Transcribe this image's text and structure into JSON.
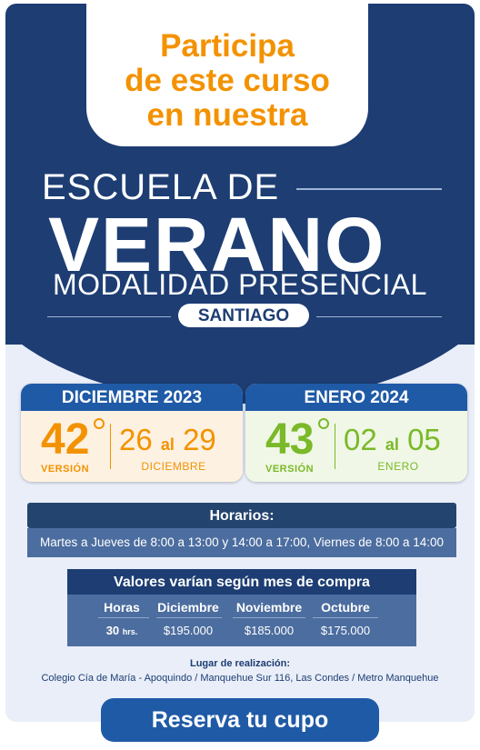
{
  "colors": {
    "navy": "#1d3d73",
    "orange": "#f39200",
    "green": "#7ab929",
    "blue": "#1f5aa6"
  },
  "headline": {
    "line1": "Participa",
    "line2": "de este curso",
    "line3": "en nuestra"
  },
  "title": {
    "line1": "ESCUELA DE",
    "line2": "VERANO",
    "line3": "MODALIDAD PRESENCIAL",
    "location": "SANTIAGO"
  },
  "editions": [
    {
      "header": "DICIEMBRE 2023",
      "number": "42",
      "version_label": "VERSIÓN",
      "date_from": "26",
      "date_sep": "al",
      "date_to": "29",
      "month": "DICIEMBRE"
    },
    {
      "header": "ENERO 2024",
      "number": "43",
      "version_label": "VERSIÓN",
      "date_from": "02",
      "date_sep": "al",
      "date_to": "05",
      "month": "ENERO"
    }
  ],
  "schedule": {
    "title": "Horarios:",
    "text": "Martes a Jueves de 8:00 a 13:00 y 14:00 a 17:00, Viernes de 8:00 a 14:00"
  },
  "prices": {
    "title": "Valores varían según mes de compra",
    "headers": [
      "Horas",
      "Diciembre",
      "Noviembre",
      "Octubre"
    ],
    "hours": "30",
    "hours_unit": "hrs.",
    "values": [
      "$195.000",
      "$185.000",
      "$175.000"
    ]
  },
  "venue": {
    "label": "Lugar de realización:",
    "text": "Colegio Cía de María - Apoquindo / Manquehue Sur 116, Las Condes / Metro Manquehue"
  },
  "cta": {
    "label": "Reserva tu cupo"
  }
}
